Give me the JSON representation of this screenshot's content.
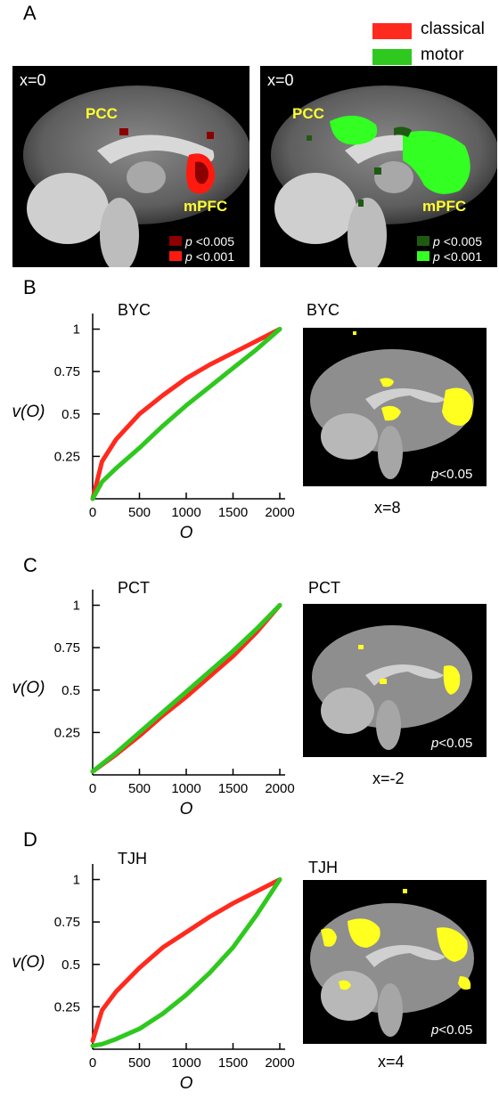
{
  "colors": {
    "classical": "#ff2a1e",
    "motor": "#2ec81e",
    "highlight": "#ffff20",
    "dark_red": "#8b0000",
    "dark_green": "#1f5a12"
  },
  "panel_a": {
    "letter": "A",
    "legend": [
      {
        "label": "classical",
        "color": "#ff2a1e"
      },
      {
        "label": "motor",
        "color": "#2ec81e"
      }
    ],
    "left": {
      "xlabel": "x=0",
      "roi_top": "PCC",
      "roi_bottom": "mPFC",
      "thresholds": [
        {
          "p": "p",
          "t": "<0.005",
          "color": "#8b0000"
        },
        {
          "p": "p",
          "t": "<0.001",
          "color": "#ff1a10"
        }
      ]
    },
    "right": {
      "xlabel": "x=0",
      "roi_top": "PCC",
      "roi_bottom": "mPFC",
      "thresholds": [
        {
          "p": "p",
          "t": "<0.005",
          "color": "#1f5a12"
        },
        {
          "p": "p",
          "t": "<0.001",
          "color": "#33ff22"
        }
      ]
    }
  },
  "panel_b": {
    "letter": "B",
    "subject": "BYC",
    "image_subject": "BYC",
    "pval_p": "p",
    "pval_t": "<0.05",
    "xcoord": "x=8"
  },
  "panel_c": {
    "letter": "C",
    "subject": "PCT",
    "image_subject": "PCT",
    "pval_p": "p",
    "pval_t": "<0.05",
    "xcoord": "x=-2"
  },
  "panel_d": {
    "letter": "D",
    "subject": "TJH",
    "image_subject": "TJH",
    "pval_p": "p",
    "pval_t": "<0.05",
    "xcoord": "x=4"
  },
  "chart_data": [
    {
      "type": "line",
      "subject": "BYC",
      "xlabel": "O",
      "ylabel": "v(O)",
      "xlim": [
        0,
        2000
      ],
      "ylim": [
        0,
        1.05
      ],
      "x_ticks": [
        0,
        500,
        1000,
        1500,
        2000
      ],
      "y_ticks": [
        0.25,
        0.5,
        0.75,
        1
      ],
      "x": [
        0,
        100,
        250,
        500,
        750,
        1000,
        1250,
        1500,
        1750,
        2000
      ],
      "series": [
        {
          "color": "#ff2a1e",
          "values": [
            0,
            0.22,
            0.35,
            0.5,
            0.61,
            0.71,
            0.79,
            0.86,
            0.93,
            1.0
          ]
        },
        {
          "color": "#2ec81e",
          "values": [
            0,
            0.1,
            0.18,
            0.3,
            0.43,
            0.55,
            0.66,
            0.77,
            0.88,
            1.0
          ]
        }
      ]
    },
    {
      "type": "line",
      "subject": "PCT",
      "xlabel": "O",
      "ylabel": "v(O)",
      "xlim": [
        0,
        2000
      ],
      "ylim": [
        0,
        1.05
      ],
      "x_ticks": [
        0,
        500,
        1000,
        1500,
        2000
      ],
      "y_ticks": [
        0.25,
        0.5,
        0.75,
        1
      ],
      "x": [
        0,
        250,
        500,
        750,
        1000,
        1250,
        1500,
        1750,
        2000
      ],
      "series": [
        {
          "color": "#ff2a1e",
          "values": [
            0.02,
            0.12,
            0.23,
            0.35,
            0.46,
            0.58,
            0.7,
            0.84,
            1.0
          ]
        },
        {
          "color": "#2ec81e",
          "values": [
            0.02,
            0.13,
            0.25,
            0.37,
            0.49,
            0.61,
            0.73,
            0.86,
            1.0
          ]
        }
      ]
    },
    {
      "type": "line",
      "subject": "TJH",
      "xlabel": "O",
      "ylabel": "v(O)",
      "xlim": [
        0,
        2000
      ],
      "ylim": [
        0,
        1.05
      ],
      "x_ticks": [
        0,
        500,
        1000,
        1500,
        2000
      ],
      "y_ticks": [
        0.25,
        0.5,
        0.75,
        1
      ],
      "x": [
        0,
        100,
        250,
        500,
        750,
        1000,
        1250,
        1500,
        1750,
        2000
      ],
      "series": [
        {
          "color": "#ff2a1e",
          "values": [
            0.05,
            0.23,
            0.34,
            0.48,
            0.6,
            0.69,
            0.78,
            0.86,
            0.93,
            1.0
          ]
        },
        {
          "color": "#2ec81e",
          "values": [
            0.02,
            0.03,
            0.06,
            0.12,
            0.21,
            0.32,
            0.45,
            0.6,
            0.79,
            1.0
          ]
        }
      ]
    }
  ]
}
